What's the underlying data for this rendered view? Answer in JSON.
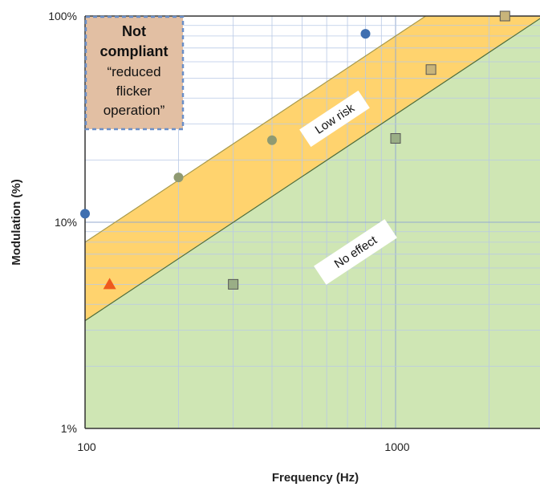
{
  "chart_data": {
    "type": "scatter",
    "title": "",
    "xlabel": "Frequency (Hz)",
    "ylabel": "Modulation (%)",
    "xscale": "log",
    "yscale": "log",
    "xlim": [
      100,
      2600
    ],
    "ylim": [
      1,
      100
    ],
    "x_ticks": [
      {
        "value": 100,
        "label": "100"
      },
      {
        "value": 1000,
        "label": "1000"
      }
    ],
    "y_ticks": [
      {
        "value": 1,
        "label": "1%"
      },
      {
        "value": 10,
        "label": "10%"
      },
      {
        "value": 100,
        "label": "100%"
      }
    ],
    "grid": true,
    "regions": [
      {
        "name": "Low risk",
        "color": "#ffd36e",
        "label": "Low risk",
        "boundary": "upper line modulation = 0.08 * frequency, lower line modulation = 0.0333 * frequency"
      },
      {
        "name": "No effect",
        "color": "#cfe6b4",
        "label": "No effect",
        "boundary": "below modulation = 0.0333 * frequency"
      }
    ],
    "annotation_box": {
      "lines": [
        "Not",
        "compliant",
        "“reduced",
        "flicker",
        "operation”"
      ],
      "fill": "#e2bfa3",
      "border": "#6a8fc8"
    },
    "series": [
      {
        "marker": "circle",
        "color": "#3f6fb0",
        "points": [
          {
            "x": 100,
            "y": 11
          },
          {
            "x": 800,
            "y": 82
          }
        ]
      },
      {
        "marker": "circle",
        "color": "#8f9a72",
        "points": [
          {
            "x": 200,
            "y": 16.5
          },
          {
            "x": 400,
            "y": 25
          }
        ]
      },
      {
        "marker": "square",
        "color": "#9aae86",
        "points": [
          {
            "x": 300,
            "y": 5
          },
          {
            "x": 1000,
            "y": 25.5
          }
        ]
      },
      {
        "marker": "square",
        "color": "#c8b47a",
        "points": [
          {
            "x": 1300,
            "y": 55
          },
          {
            "x": 2250,
            "y": 100
          }
        ]
      },
      {
        "marker": "triangle",
        "color": "#ee5a1e",
        "points": [
          {
            "x": 120,
            "y": 5
          }
        ]
      }
    ]
  }
}
